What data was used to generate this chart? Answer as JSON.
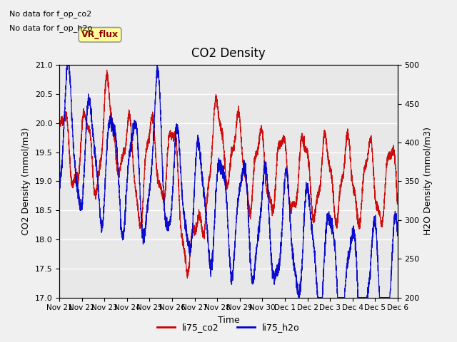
{
  "title": "CO2 Density",
  "xlabel": "Time",
  "ylabel_left": "CO2 Density (mmol/m3)",
  "ylabel_right": "H2O Density (mmol/m3)",
  "ylim_left": [
    17.0,
    21.0
  ],
  "ylim_right": [
    200,
    500
  ],
  "annotations": [
    "No data for f_op_co2",
    "No data for f_op_h2o"
  ],
  "vr_flux_label": "VR_flux",
  "legend": [
    "li75_co2",
    "li75_h2o"
  ],
  "co2_color": "#cc0000",
  "h2o_color": "#0000cc",
  "plot_bg_color": "#e8e8e8",
  "fig_bg_color": "#f0f0f0",
  "xtick_labels": [
    "Nov 21",
    "Nov 22",
    "Nov 23",
    "Nov 24",
    "Nov 25",
    "Nov 26",
    "Nov 27",
    "Nov 28",
    "Nov 29",
    "Nov 30",
    "Dec 1",
    "Dec 2",
    "Dec 3",
    "Dec 4",
    "Dec 5",
    "Dec 6"
  ],
  "n_points": 4000,
  "end_day": 15.5
}
